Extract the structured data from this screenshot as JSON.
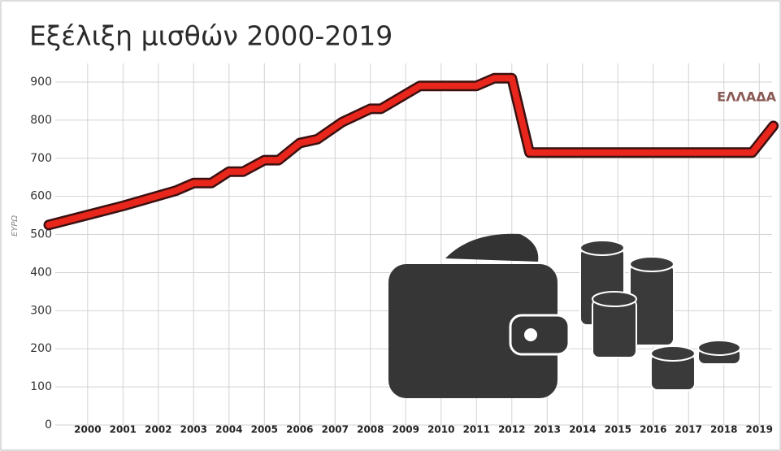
{
  "chart_data": {
    "type": "line",
    "title": "Εξέλιξη μισθών 2000-2019",
    "y_label": "ΕΥΡΩ",
    "x": [
      1998.9,
      2001.0,
      2002.5,
      2003.0,
      2003.5,
      2004.0,
      2004.4,
      2005.0,
      2005.4,
      2006.0,
      2006.5,
      2007.2,
      2008.0,
      2008.3,
      2009.4,
      2011.0,
      2011.5,
      2012.0,
      2012.5,
      2018.8,
      2019.4
    ],
    "series": [
      {
        "name": "ΕΛΛΑΔΑ",
        "color": "#e8261c",
        "values": [
          525,
          575,
          615,
          635,
          635,
          665,
          665,
          695,
          695,
          740,
          750,
          795,
          830,
          830,
          890,
          890,
          910,
          910,
          715,
          715,
          785
        ]
      }
    ],
    "xlim": [
      1998.9,
      2019.5
    ],
    "xticks": [
      2000,
      2001,
      2002,
      2003,
      2004,
      2005,
      2006,
      2007,
      2008,
      2009,
      2010,
      2011,
      2012,
      2013,
      2014,
      2015,
      2016,
      2017,
      2018,
      2019
    ],
    "ylim": [
      0,
      900
    ],
    "yticks": [
      0,
      100,
      200,
      300,
      400,
      500,
      600,
      700,
      800,
      900
    ],
    "grid": true
  }
}
